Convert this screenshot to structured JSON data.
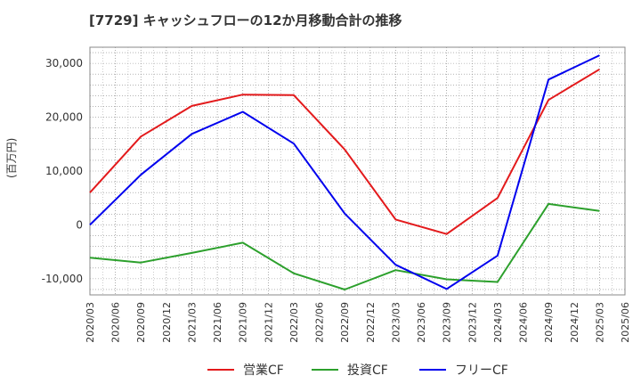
{
  "chart_data": {
    "type": "line",
    "title": "[7729]  キャッシュフローの12か月移動合計の推移",
    "xlabel": "",
    "ylabel": "(百万円)",
    "x": [
      "2020/03",
      "2020/06",
      "2020/09",
      "2020/12",
      "2021/03",
      "2021/06",
      "2021/09",
      "2021/12",
      "2022/03",
      "2022/06",
      "2022/09",
      "2022/12",
      "2023/03",
      "2023/06",
      "2023/09",
      "2023/12",
      "2024/03",
      "2024/06",
      "2024/09",
      "2024/12",
      "2025/03",
      "2025/06"
    ],
    "ylim": [
      -13000,
      33000
    ],
    "yticks": [
      -10000,
      0,
      10000,
      20000,
      30000
    ],
    "ytick_labels": [
      "-10,000",
      "0",
      "10,000",
      "20,000",
      "30,000"
    ],
    "grid": true,
    "legend_position": "bottom",
    "series": [
      {
        "name": "営業CF",
        "color": "#e31a1c",
        "points": [
          [
            "2020/03",
            6000
          ],
          [
            "2020/09",
            16400
          ],
          [
            "2021/03",
            22100
          ],
          [
            "2021/09",
            24200
          ],
          [
            "2022/03",
            24100
          ],
          [
            "2022/09",
            14000
          ],
          [
            "2023/03",
            1000
          ],
          [
            "2023/09",
            -1700
          ],
          [
            "2024/03",
            5000
          ],
          [
            "2024/09",
            23200
          ],
          [
            "2025/03",
            28900
          ]
        ]
      },
      {
        "name": "投資CF",
        "color": "#2ca02c",
        "points": [
          [
            "2020/03",
            -6100
          ],
          [
            "2020/09",
            -7000
          ],
          [
            "2021/03",
            -5200
          ],
          [
            "2021/09",
            -3300
          ],
          [
            "2022/03",
            -9000
          ],
          [
            "2022/09",
            -12000
          ],
          [
            "2023/03",
            -8400
          ],
          [
            "2023/09",
            -10100
          ],
          [
            "2024/03",
            -10600
          ],
          [
            "2024/09",
            3900
          ],
          [
            "2025/03",
            2600
          ]
        ]
      },
      {
        "name": "フリーCF",
        "color": "#0000ee",
        "points": [
          [
            "2020/03",
            0
          ],
          [
            "2020/09",
            9300
          ],
          [
            "2021/03",
            16900
          ],
          [
            "2021/09",
            21000
          ],
          [
            "2022/03",
            15100
          ],
          [
            "2022/09",
            2100
          ],
          [
            "2023/03",
            -7400
          ],
          [
            "2023/09",
            -11900
          ],
          [
            "2024/03",
            -5700
          ],
          [
            "2024/09",
            27000
          ],
          [
            "2025/03",
            31500
          ]
        ]
      }
    ]
  }
}
